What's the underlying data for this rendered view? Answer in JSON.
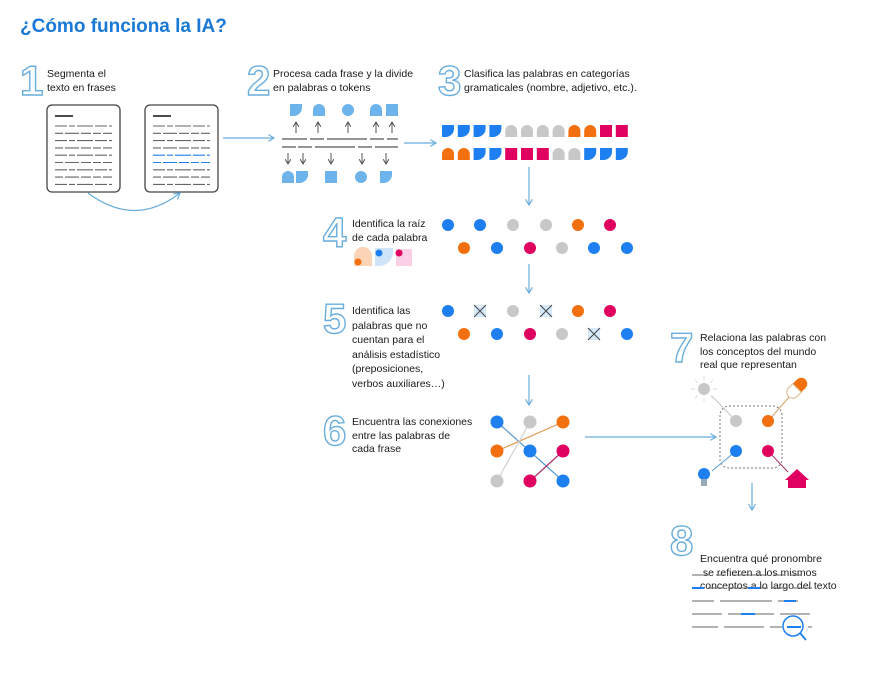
{
  "title": "¿Cómo funciona la IA?",
  "colors": {
    "blue": "#1e7ff0",
    "light_blue": "#6db3ec",
    "orange": "#f2700f",
    "magenta": "#e0005f",
    "gray": "#c8c8c8",
    "title": "#1a78d6"
  },
  "steps": [
    {
      "number": "1",
      "lines": [
        "Segmenta el",
        "texto en frases"
      ]
    },
    {
      "number": "2",
      "lines": [
        "Procesa cada frase y la divide",
        "en palabras o tokens"
      ]
    },
    {
      "number": "3",
      "lines": [
        "Clasifica las palabras en categorías",
        "gramaticales (nombre, adjetivo, etc.)."
      ]
    },
    {
      "number": "4",
      "lines": [
        "Identifica la raíz",
        "de cada palabra"
      ]
    },
    {
      "number": "5",
      "lines": [
        "Identifica las",
        "palabras que no",
        "cuentan para el",
        "análisis estadístico",
        "(preposiciones,",
        "verbos auxiliares…)"
      ]
    },
    {
      "number": "6",
      "lines": [
        "Encuentra las conexiones",
        "entre las palabras de",
        "cada frase"
      ]
    },
    {
      "number": "7",
      "lines": [
        "Relaciona las palabras con",
        "los conceptos del mundo",
        "real que representan"
      ]
    },
    {
      "number": "8",
      "lines": [
        "Encuentra qué pronombre",
        " se refieren a los mismos",
        "conceptos a lo largo del texto"
      ]
    }
  ],
  "icons": [
    "document-icon",
    "token-shape-icon",
    "arrow-icon",
    "sun-icon",
    "pill-icon",
    "lightbulb-icon",
    "house-icon",
    "magnifier-icon"
  ]
}
